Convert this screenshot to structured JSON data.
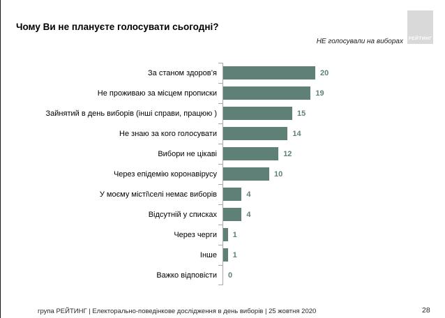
{
  "slide": {
    "title": "Чому Ви не плануєте голосувати сьогодні?",
    "subtitle": "НЕ голосували на виборах",
    "logo_text": "РЕЙТИНГ",
    "footer": "група РЕЙТИНГ | Електорально-поведінкове дослідження в день виборів | 25 жовтня 2020",
    "page_number": "28"
  },
  "colors": {
    "bar": "#5e8077",
    "value_label": "#5e8077",
    "axis": "#a9a9a9",
    "logo_bg": "#d9d9d9"
  },
  "chart_data": {
    "type": "bar",
    "orientation": "horizontal",
    "title": "Чому Ви не плануєте голосувати сьогодні?",
    "subtitle": "НЕ голосували на виборах",
    "categories": [
      "За станом здоров’я",
      "Не проживаю за місцем прописки",
      "Зайнятий в день виборів (інші справи, працюю )",
      "Не знаю за кого голосувати",
      "Вибори не цікаві",
      "Через епідемію коронавірусу",
      "У моєму місті\\селі немає виборів",
      "Відсутній у списках",
      "Через черги",
      "Інше",
      "Важко відповісти"
    ],
    "values": [
      20,
      19,
      15,
      14,
      12,
      10,
      4,
      4,
      1,
      1,
      0
    ],
    "xlabel": "",
    "ylabel": "",
    "xlim": [
      0,
      22
    ],
    "value_labels_shown": true,
    "legend": false,
    "grid": false
  }
}
